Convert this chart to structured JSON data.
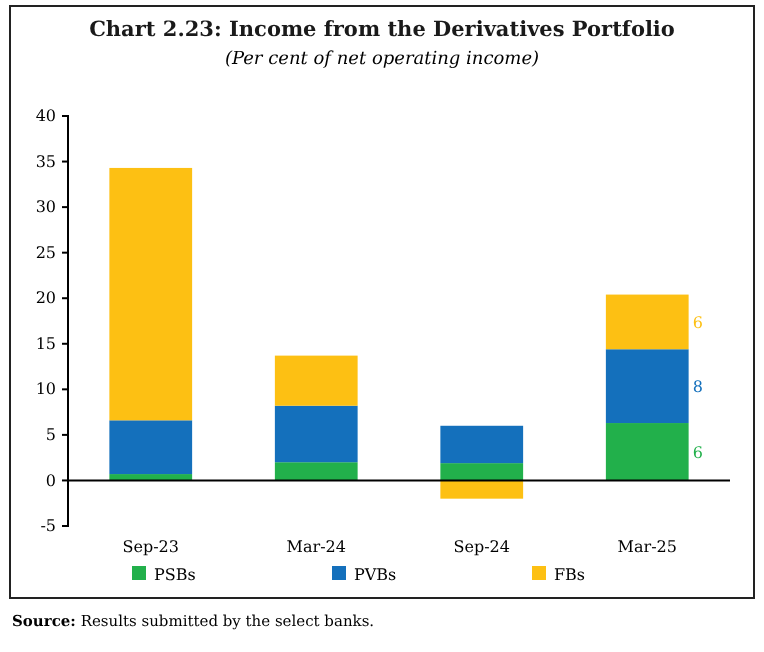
{
  "chart_data": {
    "type": "bar",
    "title": "Chart 2.23: Income from the Derivatives Portfolio",
    "subtitle": "(Per cent of net operating income)",
    "categories": [
      "Sep-23",
      "Mar-24",
      "Sep-24",
      "Mar-25"
    ],
    "stacked": true,
    "series": [
      {
        "name": "PSBs",
        "color": "#22b04b",
        "values": [
          0.7,
          2.0,
          1.9,
          6.3
        ],
        "value_labels": [
          null,
          null,
          null,
          "6"
        ]
      },
      {
        "name": "PVBs",
        "color": "#1470bc",
        "values": [
          5.9,
          6.2,
          4.1,
          8.1
        ],
        "value_labels": [
          null,
          null,
          null,
          "8"
        ]
      },
      {
        "name": "FBs",
        "color": "#fdc013",
        "values": [
          27.7,
          5.5,
          -2.0,
          6.0
        ],
        "value_labels": [
          null,
          null,
          null,
          "6"
        ]
      }
    ],
    "ylim": [
      -5,
      40
    ],
    "yticks": [
      -5,
      0,
      5,
      10,
      15,
      20,
      25,
      30,
      35,
      40
    ],
    "legend": "bottom",
    "annotations": [
      "Source: Results submitted by the select banks."
    ]
  }
}
